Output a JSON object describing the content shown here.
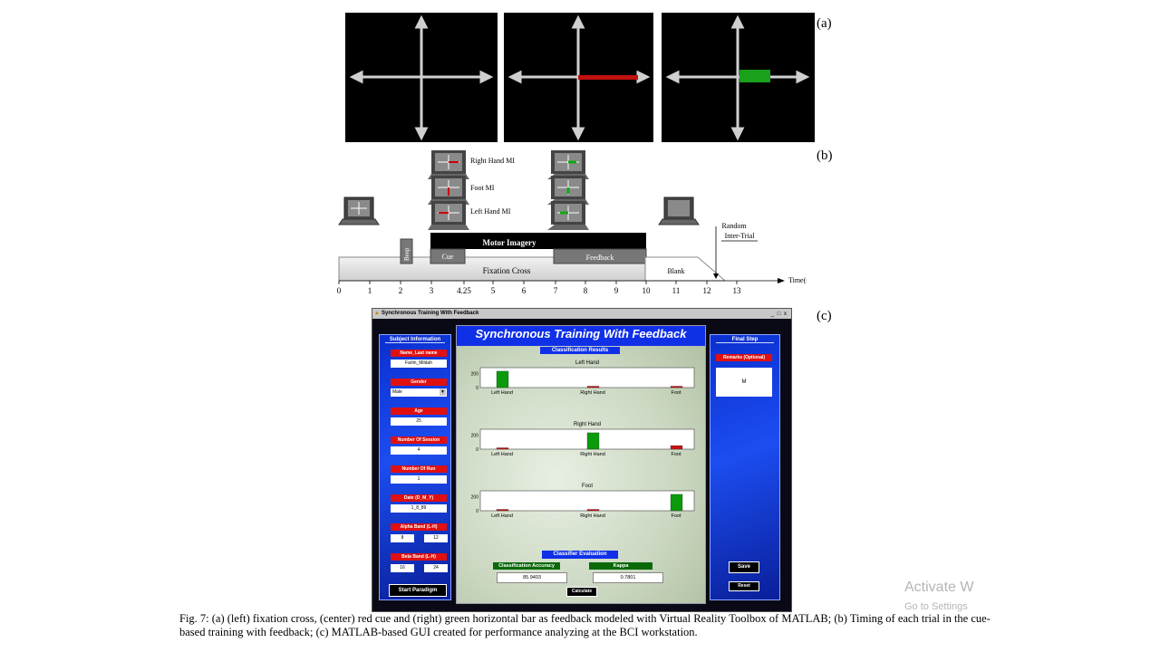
{
  "panel_labels": {
    "a": "(a)",
    "b": "(b)",
    "c": "(c)"
  },
  "timing": {
    "mi_labels": [
      "Right Hand MI",
      "Foot MI",
      "Left Hand MI"
    ],
    "beep": "Beep",
    "motor_imagery": "Motor Imagery",
    "cue": "Cue",
    "feedback": "Feedback",
    "fixation_cross": "Fixation Cross",
    "blank": "Blank",
    "random_inter_trial": [
      "Random",
      "Inter-Trial"
    ],
    "axis_label": "Time(sec)",
    "ticks": [
      "0",
      "1",
      "2",
      "3",
      "4.25",
      "5",
      "6",
      "7",
      "8",
      "9",
      "10",
      "11",
      "12",
      "13"
    ]
  },
  "gui": {
    "window_title": "Synchronous Training With Feedback",
    "window_buttons": "_ □ x",
    "banner": "Synchronous Training With Feedback",
    "classification_results": "Classification Results",
    "subject_information": "Subject Information",
    "fields": [
      {
        "label": "Name_Last name",
        "value": "Farlin_Mildah"
      },
      {
        "label": "Gender",
        "value": "Male"
      },
      {
        "label": "Age",
        "value": "25"
      },
      {
        "label": "Number Of Session",
        "value": "4"
      },
      {
        "label": "Number Of Run",
        "value": "1"
      },
      {
        "label": "Date (D_M_Y)",
        "value": "1_8_89"
      }
    ],
    "alpha_band": {
      "label": "Alpha Band (L-H)",
      "low": "8",
      "high": "12"
    },
    "beta_band": {
      "label": "Beta Band (L-H)",
      "low": "16",
      "high": "24"
    },
    "start_paradigm": "Start Paradigm",
    "final_step": "Final Step",
    "remarks_label": "Remarks (Optional)",
    "remarks_value": "M",
    "save": "Save",
    "reset": "Reset",
    "classifier_evaluation": "Classifier Evaluation",
    "accuracy_label": "Classification Accuracy",
    "accuracy_value": "85.9403",
    "kappa_label": "Kappa",
    "kappa_value": "0.7801",
    "calculate": "Calculate"
  },
  "chart_data": [
    {
      "type": "bar",
      "title": "Left Hand",
      "categories": [
        "Left Hand",
        "Right Hand",
        "Foot"
      ],
      "values": [
        230,
        8,
        8
      ],
      "yticks": [
        "200",
        "0"
      ],
      "colors": [
        "#0a9a0a",
        "#cc1010",
        "#cc1010"
      ]
    },
    {
      "type": "bar",
      "title": "Right Hand",
      "categories": [
        "Left Hand",
        "Right Hand",
        "Foot"
      ],
      "values": [
        8,
        230,
        50
      ],
      "yticks": [
        "200",
        "0"
      ],
      "colors": [
        "#cc1010",
        "#0a9a0a",
        "#cc1010"
      ]
    },
    {
      "type": "bar",
      "title": "Foot",
      "categories": [
        "Left Hand",
        "Right Hand",
        "Foot"
      ],
      "values": [
        8,
        8,
        230
      ],
      "yticks": [
        "200",
        "0"
      ],
      "colors": [
        "#cc1010",
        "#cc1010",
        "#0a9a0a"
      ]
    }
  ],
  "caption": "Fig. 7: (a) (left) fixation cross, (center) red cue and (right) green horizontal bar as feedback modeled with Virtual Reality Toolbox of MATLAB; (b) Timing of each trial in the cue-based training with feedback; (c) MATLAB-based GUI created for performance analyzing at the BCI workstation.",
  "watermark": {
    "line1": "Activate W",
    "line2": "Go to Settings"
  }
}
